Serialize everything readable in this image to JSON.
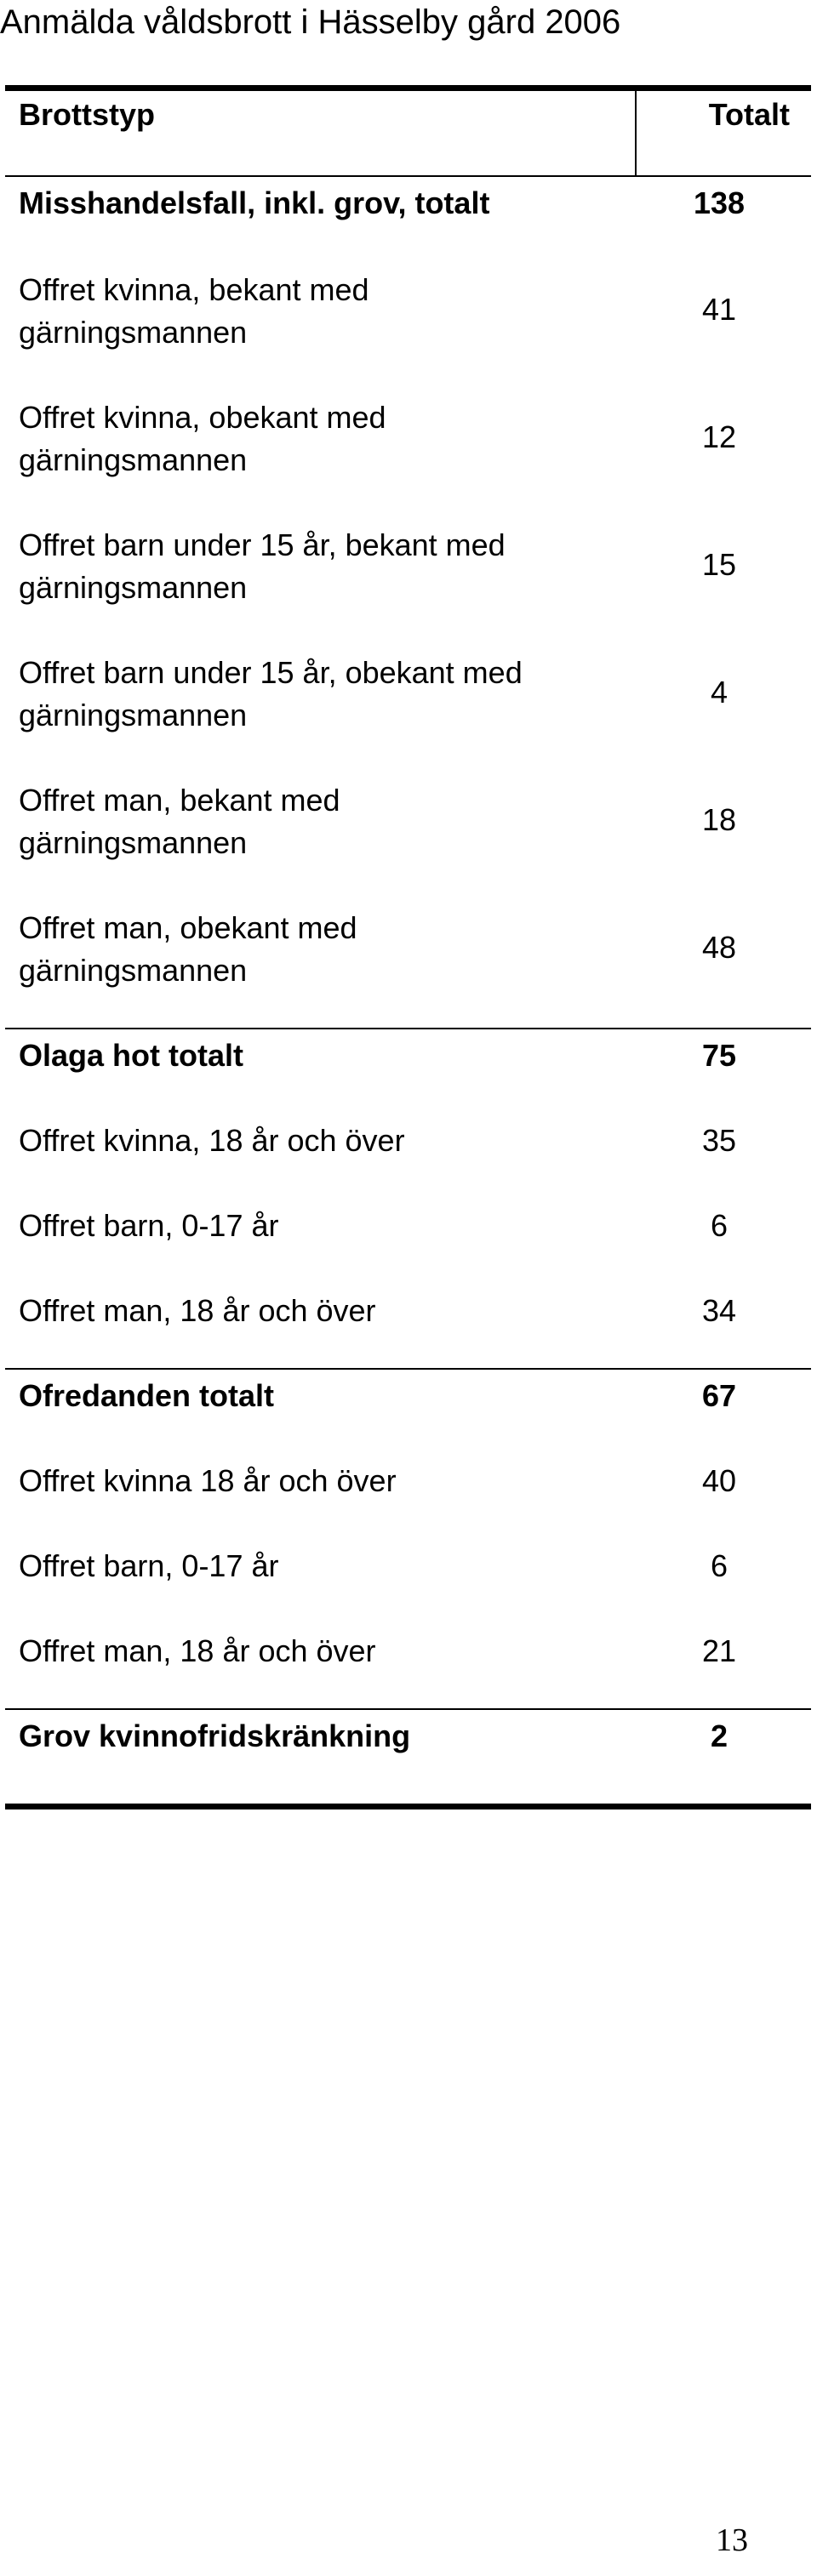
{
  "document": {
    "title": "Anmälda våldsbrott i Hässelby gård 2006",
    "page_number": "13"
  },
  "table": {
    "header": {
      "category": "Brottstyp",
      "total": "Totalt"
    },
    "rows": [
      {
        "label": "Misshandelsfall, inkl. grov, totalt",
        "label_line2": "",
        "value": "138",
        "bold": true
      },
      {
        "label": "Offret kvinna, bekant med",
        "label_line2": "gärningsmannen",
        "value": "41",
        "bold": false
      },
      {
        "label": "Offret kvinna, obekant med",
        "label_line2": "gärningsmannen",
        "value": "12",
        "bold": false
      },
      {
        "label": "Offret barn under 15 år, bekant med",
        "label_line2": "gärningsmannen",
        "value": "15",
        "bold": false
      },
      {
        "label": "Offret barn under 15 år, obekant med",
        "label_line2": "gärningsmannen",
        "value": "4",
        "bold": false
      },
      {
        "label": "Offret man, bekant med",
        "label_line2": "gärningsmannen",
        "value": "18",
        "bold": false
      },
      {
        "label": "Offret man, obekant med",
        "label_line2": "gärningsmannen",
        "value": "48",
        "bold": false
      },
      {
        "label": "Olaga hot totalt",
        "label_line2": "",
        "value": "75",
        "bold": true
      },
      {
        "label": "Offret kvinna, 18 år och över",
        "label_line2": "",
        "value": "35",
        "bold": false
      },
      {
        "label": "Offret barn, 0-17 år",
        "label_line2": "",
        "value": "6",
        "bold": false
      },
      {
        "label": "Offret man, 18 år och över",
        "label_line2": "",
        "value": "34",
        "bold": false
      },
      {
        "label": "Ofredanden totalt",
        "label_line2": "",
        "value": "67",
        "bold": true
      },
      {
        "label": "Offret kvinna 18 år och över",
        "label_line2": "",
        "value": "40",
        "bold": false
      },
      {
        "label": "Offret barn, 0-17 år",
        "label_line2": "",
        "value": "6",
        "bold": false
      },
      {
        "label": "Offret man, 18 år och över",
        "label_line2": "",
        "value": "21",
        "bold": false
      },
      {
        "label": "Grov kvinnofridskränkning",
        "label_line2": "",
        "value": "2",
        "bold": true
      }
    ]
  }
}
